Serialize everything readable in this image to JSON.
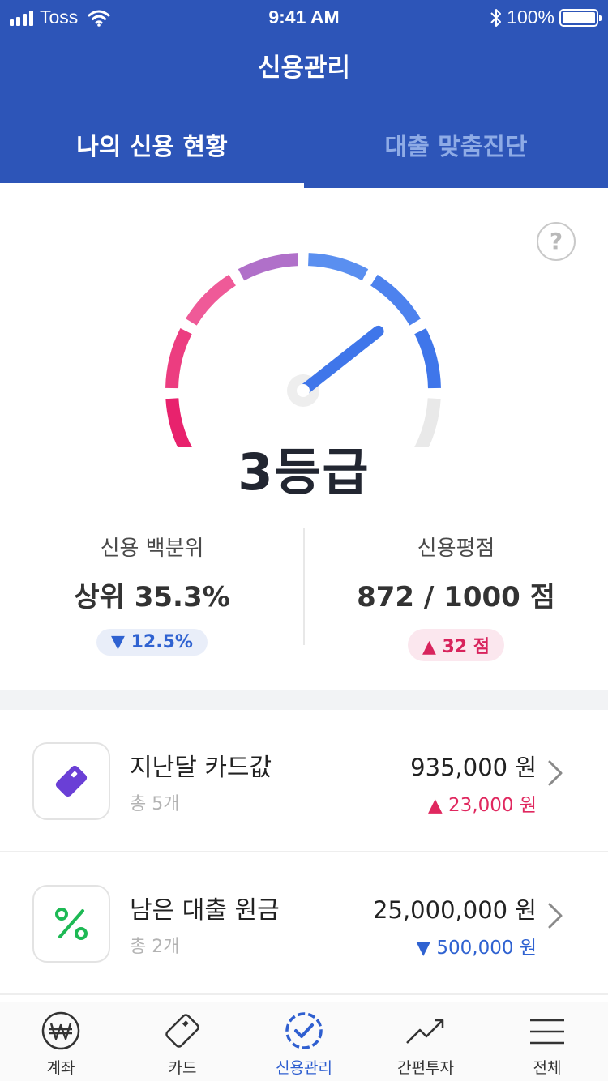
{
  "status_bar": {
    "carrier": "Toss",
    "time": "9:41 AM",
    "battery": "100%"
  },
  "header": {
    "title": "신용관리",
    "tabs": [
      {
        "label": "나의 신용 현황",
        "active": true
      },
      {
        "label": "대출 맞춤진단",
        "active": false
      }
    ]
  },
  "credit": {
    "help_label": "?",
    "grade_label": "3등급",
    "gauge_level": 0.67,
    "percentile": {
      "label": "신용 백분위",
      "value": "상위 35.3%",
      "change": "▼ 12.5%"
    },
    "score": {
      "label": "신용평점",
      "value": "872 / 1000 점",
      "change": "▲ 32 점"
    }
  },
  "items": [
    {
      "title": "지난달 카드값",
      "sub": "총 5개",
      "amount": "935,000 원",
      "change": "▲ 23,000 원",
      "direction": "up",
      "icon": "card-icon"
    },
    {
      "title": "남은 대출 원금",
      "sub": "총 2개",
      "amount": "25,000,000 원",
      "change": "▼ 500,000 원",
      "direction": "down",
      "icon": "percent-icon"
    }
  ],
  "bottom_nav": [
    {
      "label": "계좌",
      "icon": "won-icon",
      "active": false
    },
    {
      "label": "카드",
      "icon": "card-icon",
      "active": false
    },
    {
      "label": "신용관리",
      "icon": "credit-check-icon",
      "active": true
    },
    {
      "label": "간편투자",
      "icon": "trend-icon",
      "active": false
    },
    {
      "label": "전체",
      "icon": "menu-icon",
      "active": false
    }
  ],
  "colors": {
    "header_bg": "#2d55b8",
    "accent_blue": "#2f62d1",
    "accent_red": "#e0285f"
  }
}
